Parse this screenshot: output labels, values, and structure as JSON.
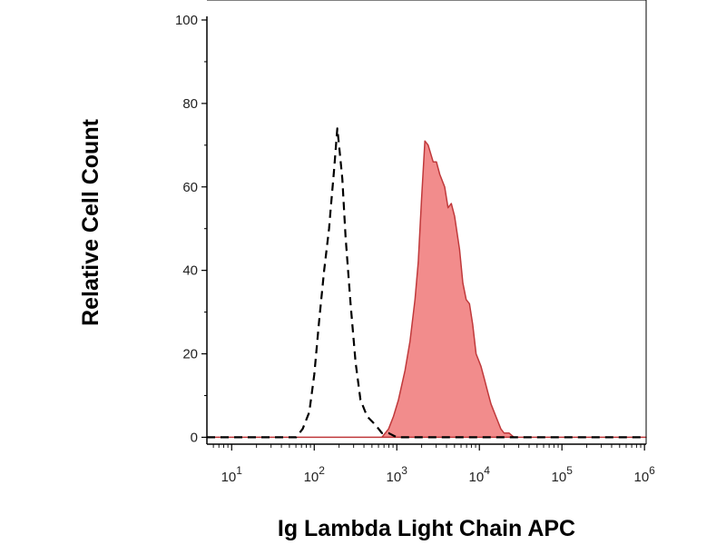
{
  "chart_data": {
    "type": "area",
    "title": "",
    "xlabel": "Ig Lambda Light Chain APC",
    "ylabel": "Relative Cell Count",
    "x_scale": "log10",
    "xlim": [
      0.7,
      6.02
    ],
    "ylim": [
      -1,
      100
    ],
    "grid": false,
    "legend": "none",
    "y_ticks": [
      {
        "value": 0,
        "label": "0"
      },
      {
        "value": 20,
        "label": "20"
      },
      {
        "value": 40,
        "label": "40"
      },
      {
        "value": 60,
        "label": "60"
      },
      {
        "value": 80,
        "label": "80"
      },
      {
        "value": 100,
        "label": "100"
      }
    ],
    "x_ticks": [
      {
        "value": 1,
        "base": "10",
        "exp": "1"
      },
      {
        "value": 2,
        "base": "10",
        "exp": "2"
      },
      {
        "value": 3,
        "base": "10",
        "exp": "3"
      },
      {
        "value": 4,
        "base": "10",
        "exp": "4"
      },
      {
        "value": 5,
        "base": "10",
        "exp": "5"
      },
      {
        "value": 6,
        "base": "10",
        "exp": "6"
      }
    ],
    "series": [
      {
        "style": "dashed",
        "color": "#000000",
        "x": [
          0.7,
          1.5,
          1.78,
          1.86,
          1.94,
          2.0,
          2.06,
          2.12,
          2.18,
          2.2,
          2.24,
          2.28,
          2.3,
          2.34,
          2.38,
          2.44,
          2.5,
          2.56,
          2.64,
          2.74,
          2.82,
          2.9,
          3.0,
          3.1,
          6.02
        ],
        "y": [
          0,
          0,
          0,
          2,
          6,
          15,
          28,
          40,
          50,
          55,
          64,
          74,
          70,
          62,
          48,
          32,
          18,
          9,
          5,
          3,
          1,
          1,
          0,
          0,
          0
        ]
      },
      {
        "style": "filled",
        "color": "#f28c8c",
        "line_color": "#c0393b",
        "x": [
          0.7,
          2.5,
          2.82,
          2.9,
          2.96,
          3.02,
          3.1,
          3.16,
          3.22,
          3.26,
          3.3,
          3.34,
          3.38,
          3.44,
          3.48,
          3.52,
          3.58,
          3.62,
          3.66,
          3.7,
          3.76,
          3.8,
          3.84,
          3.88,
          3.92,
          3.96,
          4.02,
          4.06,
          4.1,
          4.14,
          4.2,
          4.26,
          4.3,
          4.36,
          4.42,
          4.5,
          4.6,
          4.7,
          4.8,
          6.02
        ],
        "y": [
          0,
          0,
          0,
          2,
          5,
          9,
          16,
          23,
          33,
          42,
          57,
          71,
          70,
          66,
          66,
          63,
          60,
          55,
          56,
          53,
          45,
          37,
          33,
          32,
          27,
          20,
          17,
          14,
          11,
          8,
          5,
          2,
          1,
          1,
          0,
          0,
          0,
          0,
          0,
          0
        ]
      }
    ]
  }
}
